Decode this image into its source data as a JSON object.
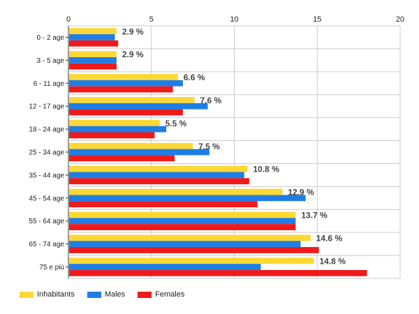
{
  "chart_data": {
    "type": "bar",
    "orientation": "horizontal",
    "categories": [
      "0 - 2 age",
      "3 - 5 age",
      "6 - 11 age",
      "12 - 17 age",
      "18 - 24 age",
      "25 - 34 age",
      "35 - 44 age",
      "45 - 54 age",
      "55 - 64 age",
      "65 - 74 age",
      "75 e più"
    ],
    "series": [
      {
        "name": "Inhabitants",
        "color": "#fdd835",
        "values": [
          2.9,
          2.9,
          6.6,
          7.6,
          5.5,
          7.5,
          10.8,
          12.9,
          13.7,
          14.6,
          14.8
        ]
      },
      {
        "name": "Males",
        "color": "#1e7ee6",
        "values": [
          2.8,
          2.9,
          6.9,
          8.4,
          5.9,
          8.5,
          10.6,
          14.3,
          13.7,
          14.0,
          11.6
        ]
      },
      {
        "name": "Females",
        "color": "#f01a1a",
        "values": [
          3.0,
          2.9,
          6.3,
          6.9,
          5.2,
          6.4,
          10.9,
          11.4,
          13.7,
          15.1,
          18.0
        ]
      }
    ],
    "data_labels": [
      "2.9 %",
      "2.9 %",
      "6.6 %",
      "7.6 %",
      "5.5 %",
      "7.5 %",
      "10.8 %",
      "12.9 %",
      "13.7 %",
      "14.6 %",
      "14.8 %"
    ],
    "x_ticks": [
      0,
      5,
      10,
      15,
      20
    ],
    "xlim": [
      0,
      20
    ],
    "x_axis_position": "top",
    "grid": true,
    "legend_position": "bottom-left"
  }
}
